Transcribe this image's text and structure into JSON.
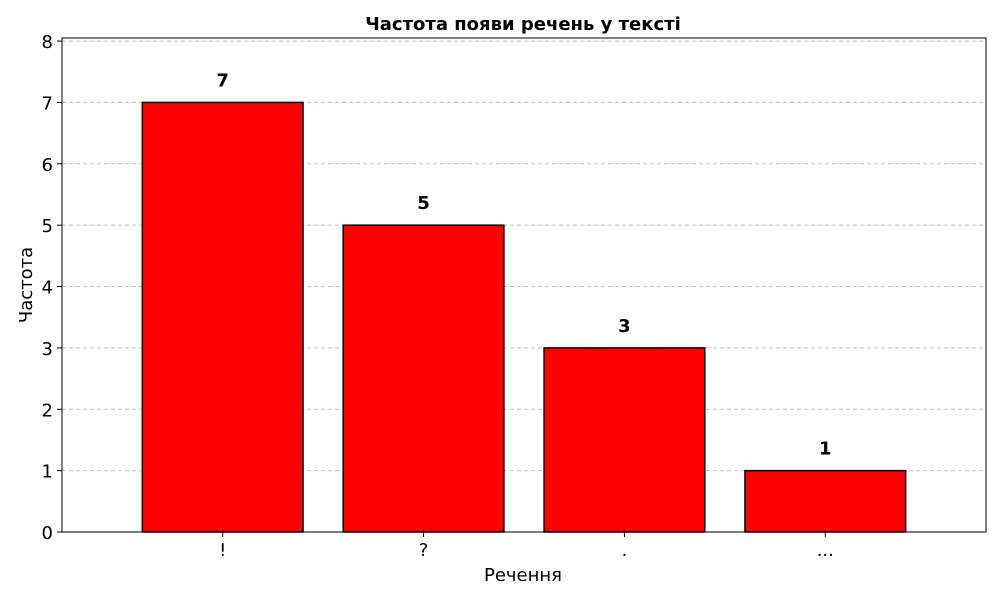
{
  "chart_data": {
    "type": "bar",
    "title": "Частота появи речень у тексті",
    "xlabel": "Речення",
    "ylabel": "Частота",
    "categories": [
      "!",
      "?",
      ".",
      "..."
    ],
    "values": [
      7,
      5,
      3,
      1
    ],
    "data_labels": [
      "7",
      "5",
      "3",
      "1"
    ],
    "ylim": [
      0,
      8
    ],
    "yticks": [
      "0",
      "1",
      "2",
      "3",
      "4",
      "5",
      "6",
      "7",
      "8"
    ],
    "grid": "y-dashed",
    "legend": "none",
    "colors": {
      "bar_fill": "#ff0000",
      "bar_edge": "#000000",
      "grid": "#c0c0c0",
      "axis": "#000000",
      "text": "#000000"
    }
  }
}
